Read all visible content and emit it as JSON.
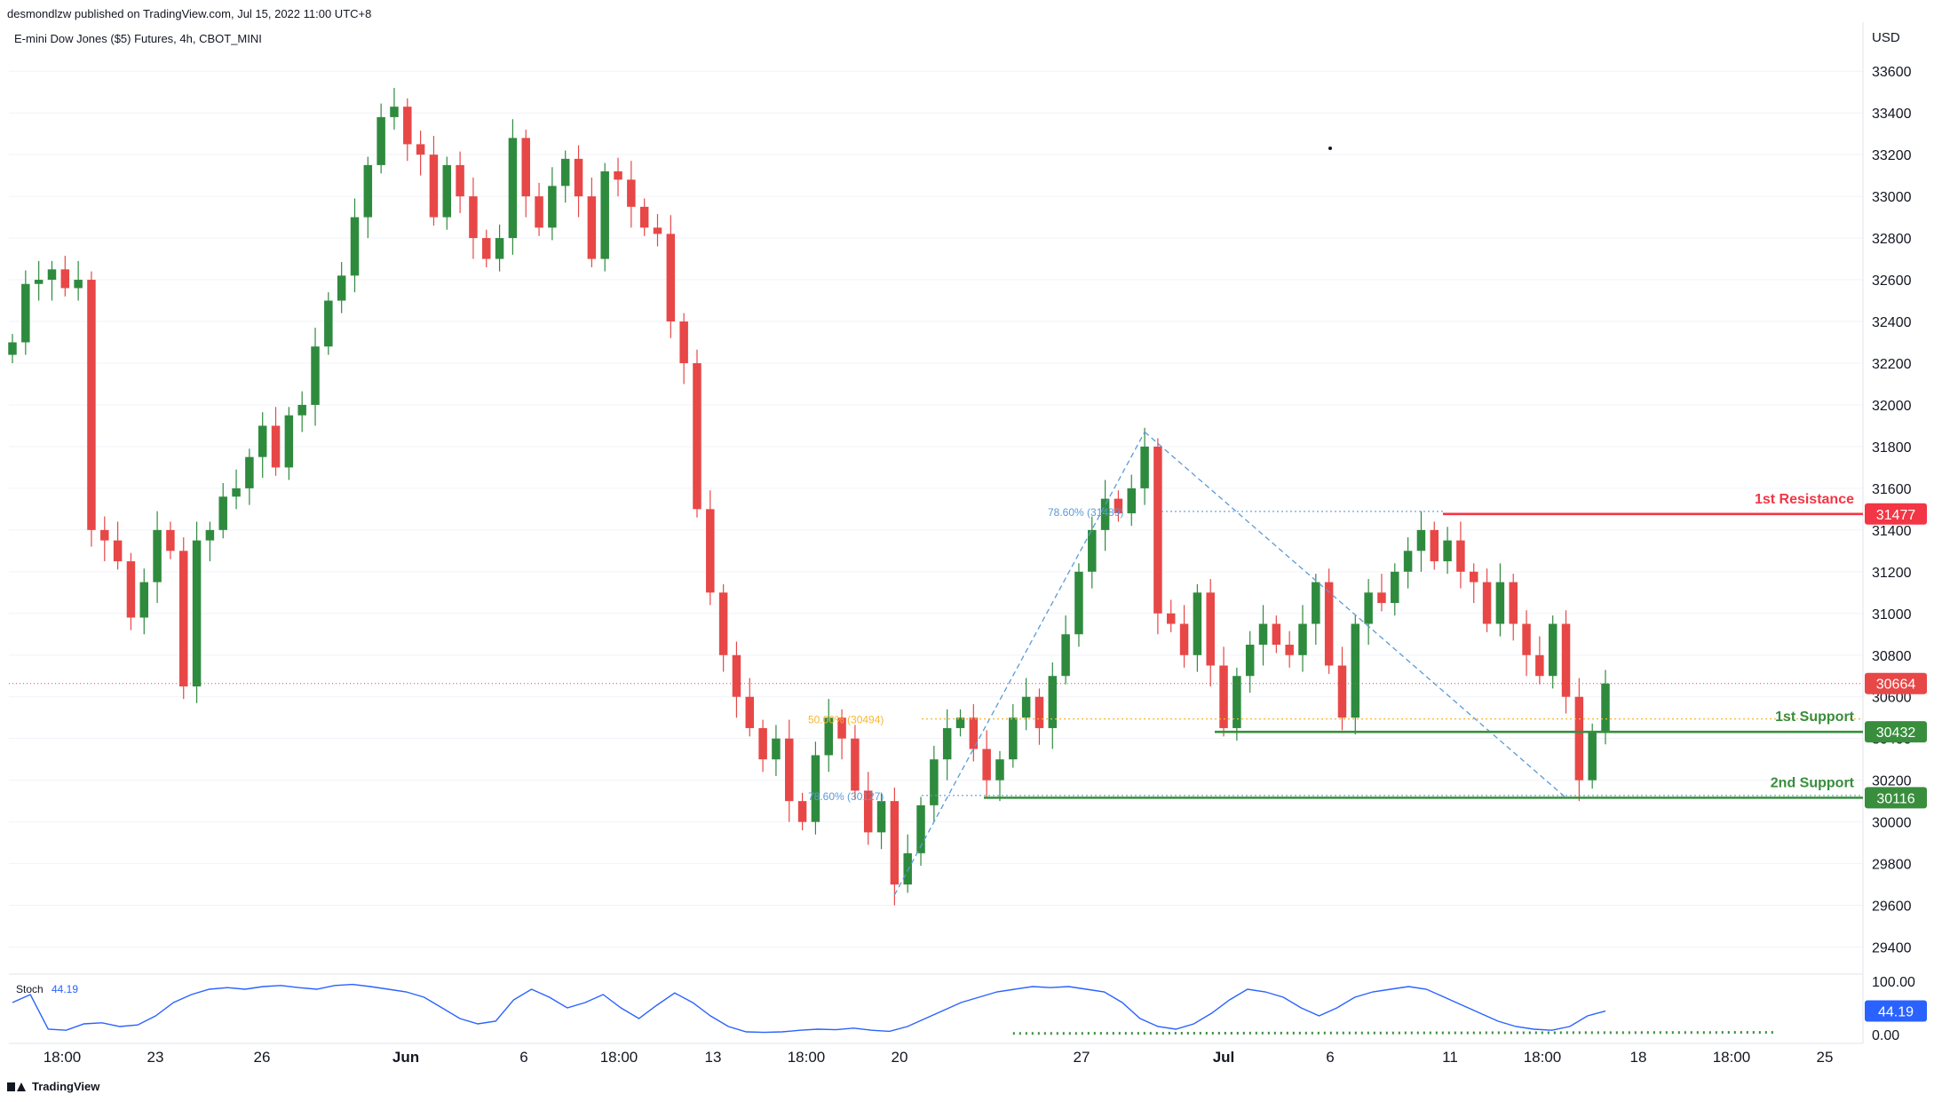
{
  "header": {
    "publisher": "desmondlzw published on TradingView.com, Jul 15, 2022 11:00 UTC+8",
    "symbol": "E-mini Dow Jones ($5) Futures, 4h, CBOT_MINI",
    "currency": "USD"
  },
  "footer": {
    "brand": "TradingView"
  },
  "colors": {
    "up": "#2e8b3e",
    "down": "#e84747",
    "resistance": "#f23645",
    "support": "#388e3c",
    "fib": "#5b9bd5",
    "fib_mid": "#f7b731",
    "stoch": "#2962ff",
    "grid": "#f0f3fa"
  },
  "chart_data": [
    {
      "type": "candlestick",
      "title": "E-mini Dow Jones ($5) Futures, 4h, CBOT_MINI",
      "ylabel": "USD",
      "ylim": [
        29300,
        33750
      ],
      "y_ticks": [
        29400,
        29600,
        29800,
        30000,
        30200,
        30400,
        30600,
        30800,
        31000,
        31200,
        31400,
        31600,
        31800,
        32000,
        32200,
        32400,
        32600,
        32800,
        33000,
        33200,
        33400,
        33600
      ],
      "x_tick_labels": [
        "18:00",
        "23",
        "26",
        "Jun",
        "6",
        "18:00",
        "13",
        "18:00",
        "20",
        "27",
        "Jul",
        "6",
        "11",
        "18:00",
        "18",
        "18:00",
        "25"
      ],
      "grid": true,
      "last_price": 30664,
      "ohlc_close_path": [
        32300,
        32580,
        32600,
        32650,
        32560,
        32600,
        31400,
        31350,
        31250,
        30980,
        31150,
        31400,
        31300,
        30650,
        31350,
        31400,
        31560,
        31600,
        31750,
        31900,
        31700,
        31950,
        32000,
        32280,
        32500,
        32620,
        32900,
        33150,
        33380,
        33430,
        33250,
        33200,
        32900,
        33150,
        33000,
        32800,
        32700,
        32800,
        33280,
        33000,
        32850,
        33050,
        33180,
        33000,
        32700,
        33120,
        33080,
        32950,
        32850,
        32820,
        32400,
        32200,
        31500,
        31100,
        30800,
        30600,
        30450,
        30300,
        30400,
        30100,
        30000,
        30320,
        30500,
        30400,
        30150,
        29950,
        30100,
        29700,
        29850,
        30080,
        30300,
        30450,
        30500,
        30350,
        30200,
        30300,
        30500,
        30600,
        30450,
        30700,
        30900,
        31200,
        31400,
        31550,
        31480,
        31600,
        31800,
        31000,
        30950,
        30800,
        31100,
        30750,
        30450,
        30700,
        30850,
        30950,
        30850,
        30800,
        30950,
        31150,
        30750,
        30500,
        30950,
        31100,
        31050,
        31200,
        31300,
        31400,
        31250,
        31350,
        31200,
        31150,
        30950,
        31150,
        30950,
        30800,
        30700,
        30950,
        30600,
        30200,
        30432,
        30664
      ],
      "horizontal_levels": [
        {
          "label": "1st Resistance",
          "value": 31477
        },
        {
          "label": "1st Support",
          "value": 30432
        },
        {
          "label": "2nd Support",
          "value": 30116
        }
      ],
      "fib_labels": [
        {
          "label": "78.60% (31489)",
          "value": 31489
        },
        {
          "label": "50.00% (30494)",
          "value": 30494
        },
        {
          "label": "78.60% (30127)",
          "value": 30127
        }
      ]
    },
    {
      "type": "line",
      "title": "Stoch",
      "value_label": "44.19",
      "ylim": [
        0,
        100
      ],
      "y_ticks": [
        "100.00",
        "0.00"
      ],
      "current": 44.19,
      "values": [
        60,
        75,
        10,
        8,
        20,
        22,
        15,
        18,
        35,
        60,
        75,
        85,
        88,
        85,
        90,
        92,
        88,
        85,
        92,
        94,
        90,
        85,
        80,
        70,
        50,
        30,
        20,
        25,
        65,
        85,
        70,
        50,
        60,
        75,
        50,
        30,
        55,
        78,
        60,
        35,
        15,
        5,
        4,
        5,
        8,
        10,
        9,
        12,
        8,
        6,
        15,
        30,
        45,
        60,
        70,
        80,
        85,
        90,
        88,
        90,
        85,
        80,
        60,
        30,
        15,
        10,
        20,
        40,
        65,
        85,
        80,
        70,
        50,
        35,
        50,
        70,
        80,
        85,
        90,
        85,
        70,
        55,
        40,
        25,
        15,
        10,
        8,
        15,
        35,
        44
      ]
    }
  ]
}
